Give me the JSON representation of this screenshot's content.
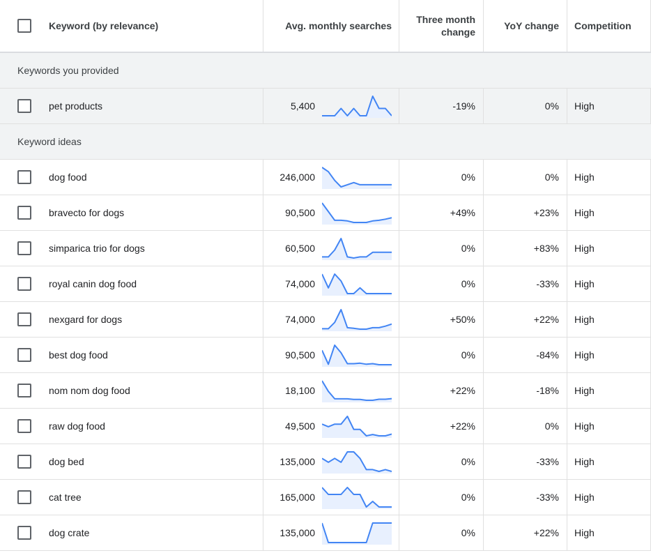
{
  "header": {
    "keyword": "Keyword (by relevance)",
    "avg": "Avg. monthly searches",
    "three_month": "Three month change",
    "yoy": "YoY change",
    "competition": "Competition"
  },
  "sections": {
    "provided": "Keywords you provided",
    "ideas": "Keyword ideas"
  },
  "colors": {
    "spark_line": "#4285f4",
    "spark_fill": "#e8f0fe",
    "section_bg": "#f1f3f4"
  },
  "provided_rows": [
    {
      "keyword": "pet products",
      "avg": "5,400",
      "three_month": "-19%",
      "yoy": "0%",
      "competition": "High",
      "trend": [
        1,
        1,
        1,
        4,
        1,
        4,
        1,
        1,
        9,
        4,
        4,
        1
      ]
    }
  ],
  "idea_rows": [
    {
      "keyword": "dog food",
      "avg": "246,000",
      "three_month": "0%",
      "yoy": "0%",
      "competition": "High",
      "trend": [
        10,
        8,
        4,
        1,
        2,
        3,
        2,
        2,
        2,
        2,
        2,
        2
      ]
    },
    {
      "keyword": "bravecto for dogs",
      "avg": "90,500",
      "three_month": "+49%",
      "yoy": "+23%",
      "competition": "High",
      "trend": [
        10,
        6,
        2,
        2,
        1.7,
        1,
        1,
        1,
        1.7,
        2,
        2.5,
        3.2
      ]
    },
    {
      "keyword": "simparica trio for dogs",
      "avg": "60,500",
      "three_month": "0%",
      "yoy": "+83%",
      "competition": "High",
      "trend": [
        1,
        1,
        4,
        9,
        1,
        0.5,
        1,
        1,
        3,
        3,
        3,
        3
      ]
    },
    {
      "keyword": "royal canin dog food",
      "avg": "74,000",
      "three_month": "0%",
      "yoy": "-33%",
      "competition": "High",
      "trend": [
        10,
        4,
        10,
        7,
        1.5,
        1.5,
        4,
        1.5,
        1.5,
        1.5,
        1.5,
        1.5
      ]
    },
    {
      "keyword": "nexgard for dogs",
      "avg": "74,000",
      "three_month": "+50%",
      "yoy": "+22%",
      "competition": "High",
      "trend": [
        1,
        1,
        4,
        10,
        1.5,
        1.2,
        0.8,
        0.8,
        1.5,
        1.5,
        2.2,
        3.2
      ]
    },
    {
      "keyword": "best dog food",
      "avg": "90,500",
      "three_month": "0%",
      "yoy": "-84%",
      "competition": "High",
      "trend": [
        6,
        0.5,
        8,
        5,
        0.7,
        0.7,
        0.9,
        0.5,
        0.7,
        0.3,
        0.3,
        0.3
      ]
    },
    {
      "keyword": "nom nom dog food",
      "avg": "18,100",
      "three_month": "+22%",
      "yoy": "-18%",
      "competition": "High",
      "trend": [
        10,
        5,
        1.5,
        1.5,
        1.5,
        1.2,
        1.2,
        0.8,
        0.8,
        1.3,
        1.3,
        1.6
      ]
    },
    {
      "keyword": "raw dog food",
      "avg": "49,500",
      "three_month": "+22%",
      "yoy": "0%",
      "competition": "High",
      "trend": [
        6,
        5,
        6,
        6,
        9,
        4,
        4,
        1.5,
        2,
        1.5,
        1.5,
        2.2
      ]
    },
    {
      "keyword": "dog bed",
      "avg": "135,000",
      "three_month": "0%",
      "yoy": "-33%",
      "competition": "High",
      "trend": [
        6,
        4.5,
        6,
        4.5,
        8.5,
        8.5,
        6,
        1.7,
        1.7,
        1,
        1.7,
        1
      ]
    },
    {
      "keyword": "cat tree",
      "avg": "165,000",
      "three_month": "0%",
      "yoy": "-33%",
      "competition": "High",
      "trend": [
        8,
        5.5,
        5.5,
        5.5,
        8,
        5.5,
        5.5,
        1,
        3,
        1,
        1,
        1
      ]
    },
    {
      "keyword": "dog crate",
      "avg": "135,000",
      "three_month": "0%",
      "yoy": "+22%",
      "competition": "High",
      "trend": [
        10,
        0.5,
        0.5,
        0.5,
        0.5,
        0.5,
        0.5,
        0.5,
        10,
        10,
        10,
        10
      ]
    }
  ]
}
